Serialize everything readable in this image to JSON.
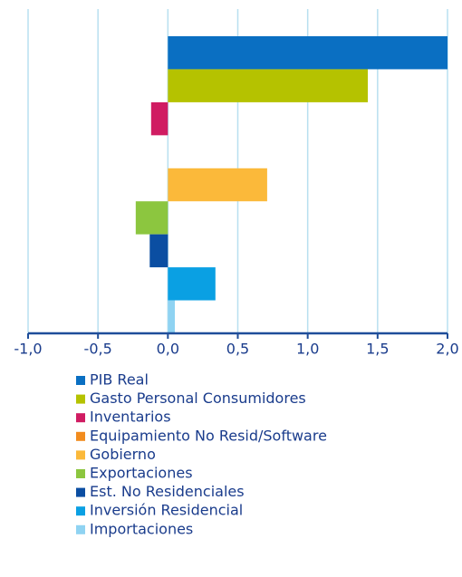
{
  "chart_data": {
    "type": "barh",
    "series": [
      {
        "name": "PIB Real",
        "color": "#0a6fc2",
        "values": [
          2.0
        ]
      },
      {
        "name": "Gasto Personal Consumidores",
        "color": "#b5c200",
        "values": [
          1.43
        ]
      },
      {
        "name": "Inventarios",
        "color": "#d01c62",
        "values": [
          -0.12
        ]
      },
      {
        "name": "Equipamiento No Resid/Software",
        "color": "#f28c1e",
        "values": [
          0
        ]
      },
      {
        "name": "Gobierno",
        "color": "#fbb93a",
        "values": [
          0.71
        ]
      },
      {
        "name": "Exportaciones",
        "color": "#8cc63f",
        "values": [
          -0.23
        ]
      },
      {
        "name": "Est. No Residenciales",
        "color": "#0b4ea2",
        "values": [
          -0.13
        ]
      },
      {
        "name": "Inversión Residencial",
        "color": "#0aa0e3",
        "values": [
          0.34
        ]
      },
      {
        "name": "Importaciones",
        "color": "#8fd3f2",
        "values": [
          0.05
        ]
      }
    ],
    "xlim": [
      -1,
      2
    ],
    "xticks": [
      {
        "value": -1,
        "label": "-1,0"
      },
      {
        "value": -0.5,
        "label": "-0,5"
      },
      {
        "value": 0,
        "label": "0,0"
      },
      {
        "value": 0.5,
        "label": "0,5"
      },
      {
        "value": 1,
        "label": "1,0"
      },
      {
        "value": 1.5,
        "label": "1,5"
      },
      {
        "value": 2,
        "label": "2,0"
      }
    ],
    "grid": true
  }
}
